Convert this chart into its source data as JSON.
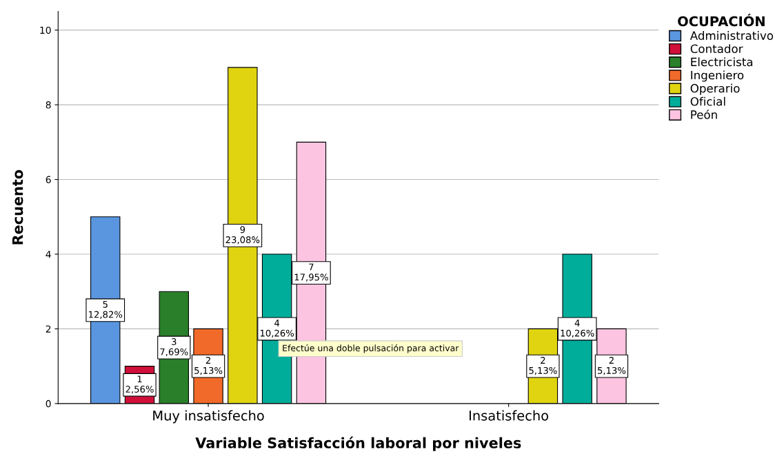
{
  "chart_data": {
    "type": "bar",
    "xlabel": "Variable Satisfacción laboral por niveles",
    "ylabel": "Recuento",
    "legend_title": "OCUPACIÓN",
    "categories": [
      "Muy insatisfecho",
      "Insatisfecho"
    ],
    "series": [
      {
        "name": "Administrativo",
        "color": "#5a96e0",
        "values": [
          5,
          null
        ],
        "value_labels": [
          "5\n12,82%",
          null
        ]
      },
      {
        "name": "Contador",
        "color": "#d0103a",
        "values": [
          1,
          null
        ],
        "value_labels": [
          "1\n2,56%",
          null
        ]
      },
      {
        "name": "Electricista",
        "color": "#2a7f2a",
        "values": [
          3,
          null
        ],
        "value_labels": [
          "3\n7,69%",
          null
        ]
      },
      {
        "name": "Ingeniero",
        "color": "#f26a2a",
        "values": [
          2,
          null
        ],
        "value_labels": [
          "2\n5,13%",
          null
        ]
      },
      {
        "name": "Operario",
        "color": "#e0d410",
        "values": [
          9,
          2
        ],
        "value_labels": [
          "9\n23,08%",
          "2\n5,13%"
        ]
      },
      {
        "name": "Oficial",
        "color": "#00ad9a",
        "values": [
          4,
          4
        ],
        "value_labels": [
          "4\n10,26%",
          "4\n10,26%"
        ]
      },
      {
        "name": "Peón",
        "color": "#fcc4e0",
        "values": [
          7,
          2
        ],
        "value_labels": [
          "7\n17,95%",
          "2\n5,13%"
        ]
      }
    ],
    "ylim": [
      0,
      10.5
    ],
    "yticks": [
      0,
      2,
      4,
      6,
      8,
      10
    ],
    "grid": "y",
    "legend": "top right",
    "annotations": [
      "Efectúe una doble pulsación para activar"
    ]
  }
}
